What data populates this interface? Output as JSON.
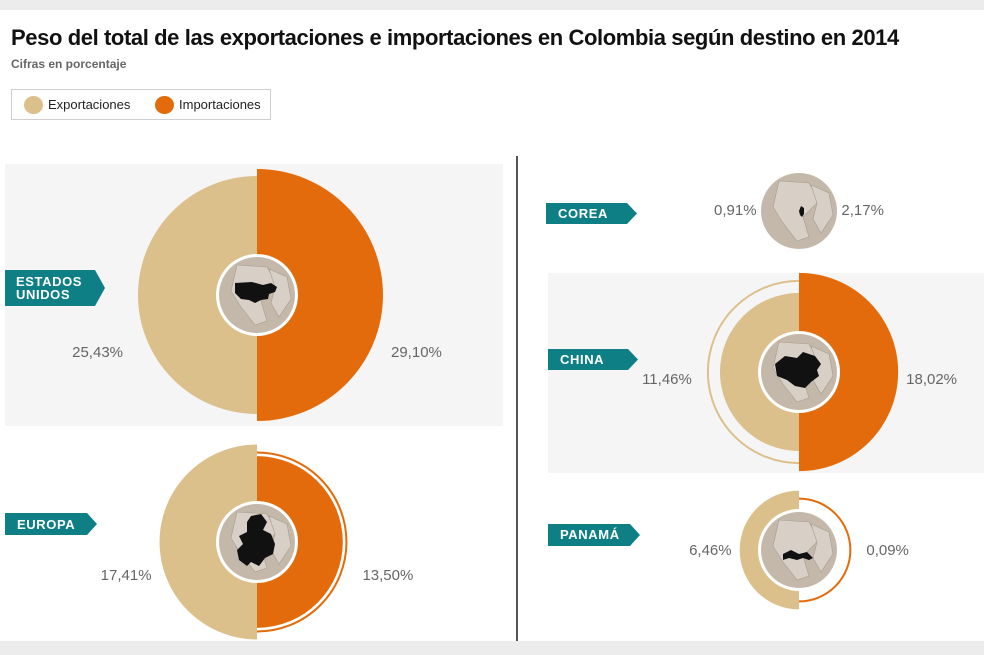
{
  "title": "Peso del total de las exportaciones e importaciones en Colombia según destino en 2014",
  "subtitle": "Cifras en porcentaje",
  "colors": {
    "exports": "#dcc08b",
    "imports": "#e36b0b",
    "tag": "#0f7f86",
    "panel": "#f5f5f5",
    "map_bg": "#c4b8aa",
    "divider": "#555555"
  },
  "chart_data": {
    "type": "pie",
    "title": "Peso del total de las exportaciones e importaciones en Colombia según destino en 2014",
    "subtitle": "Cifras en porcentaje",
    "unit": "%",
    "series": [
      {
        "name": "Exportaciones",
        "side": "left"
      },
      {
        "name": "Importaciones",
        "side": "right"
      }
    ],
    "destinations": [
      {
        "name": "ESTADOS UNIDOS",
        "exportaciones": 25.43,
        "importaciones": 29.1,
        "exportaciones_label": "25,43%",
        "importaciones_label": "29,10%",
        "map_icon": "usa-map-icon"
      },
      {
        "name": "EUROPA",
        "exportaciones": 17.41,
        "importaciones": 13.5,
        "exportaciones_label": "17,41%",
        "importaciones_label": "13,50%",
        "map_icon": "europe-map-icon"
      },
      {
        "name": "COREA",
        "exportaciones": 0.91,
        "importaciones": 2.17,
        "exportaciones_label": "0,91%",
        "importaciones_label": "2,17%",
        "map_icon": "korea-map-icon"
      },
      {
        "name": "CHINA",
        "exportaciones": 11.46,
        "importaciones": 18.02,
        "exportaciones_label": "11,46%",
        "importaciones_label": "18,02%",
        "map_icon": "china-map-icon"
      },
      {
        "name": "PANAMÁ",
        "exportaciones": 6.46,
        "importaciones": 0.09,
        "exportaciones_label": "6,46%",
        "importaciones_label": "0,09%",
        "map_icon": "panama-map-icon"
      }
    ]
  },
  "legend": [
    {
      "label": "Exportaciones",
      "color": "#dcc08b"
    },
    {
      "label": "Importaciones",
      "color": "#e36b0b"
    }
  ],
  "tags": {
    "usa": "ESTADOS\nUNIDOS",
    "europa": "EUROPA",
    "corea": "COREA",
    "china": "CHINA",
    "panama": "PANAMÁ"
  }
}
